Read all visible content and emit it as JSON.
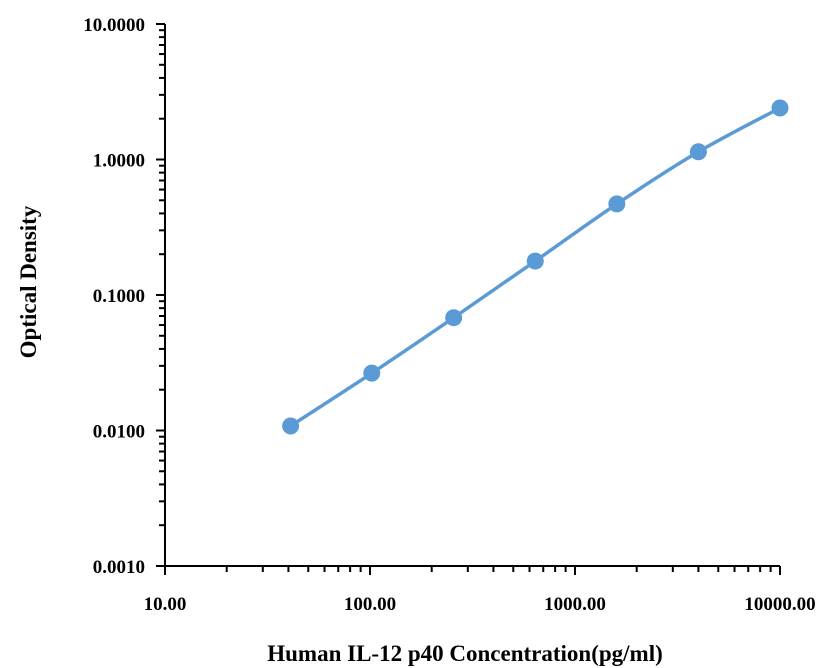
{
  "chart_data": {
    "type": "line",
    "title": "",
    "xlabel": "Human IL-12 p40 Concentration(pg/ml)",
    "ylabel": "Optical Density",
    "x_scale": "log",
    "y_scale": "log",
    "xlim": [
      10,
      10000
    ],
    "ylim": [
      0.001,
      10
    ],
    "x_ticks": [
      "10.00",
      "100.00",
      "1000.00",
      "10000.00"
    ],
    "y_ticks": [
      "10.0000",
      "1.0000",
      "0.1000",
      "0.0100",
      "0.0010"
    ],
    "grid": false,
    "legend": "none",
    "series": [
      {
        "color": "#5b9bd5",
        "x": [
          41,
          102,
          256,
          640,
          1600,
          4000,
          10000
        ],
        "y": [
          0.0108,
          0.0265,
          0.068,
          0.178,
          0.47,
          1.14,
          2.4
        ]
      }
    ]
  }
}
